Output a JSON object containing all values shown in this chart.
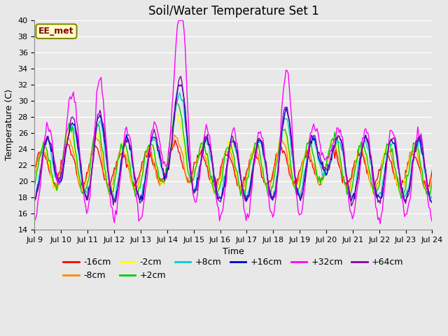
{
  "title": "Soil/Water Temperature Set 1",
  "xlabel": "Time",
  "ylabel": "Temperature (C)",
  "ylim": [
    14,
    40
  ],
  "yticks": [
    14,
    16,
    18,
    20,
    22,
    24,
    26,
    28,
    30,
    32,
    34,
    36,
    38,
    40
  ],
  "x_tick_labels": [
    "Jul 9",
    "Jul 10",
    "Jul 11",
    "Jul 12",
    "Jul 13",
    "Jul 14",
    "Jul 15",
    "Jul 16",
    "Jul 17",
    "Jul 18",
    "Jul 19",
    "Jul 20",
    "Jul 21",
    "Jul 22",
    "Jul 23",
    "Jul 24"
  ],
  "annotation_text": "EE_met",
  "annotation_bg": "#ffffcc",
  "annotation_border": "#888800",
  "annotation_text_color": "#880000",
  "series": [
    {
      "label": "-16cm",
      "color": "#ff0000"
    },
    {
      "label": "-8cm",
      "color": "#ff8800"
    },
    {
      "label": "-2cm",
      "color": "#ffff00"
    },
    {
      "label": "+2cm",
      "color": "#00cc00"
    },
    {
      "label": "+8cm",
      "color": "#00cccc"
    },
    {
      "label": "+16cm",
      "color": "#0000cc"
    },
    {
      "label": "+32cm",
      "color": "#ff00ff"
    },
    {
      "label": "+64cm",
      "color": "#8800aa"
    }
  ],
  "fig_bg_color": "#e8e8e8",
  "plot_bg_color": "#e8e8e8",
  "grid_color": "#ffffff",
  "title_fontsize": 12,
  "axis_fontsize": 9,
  "tick_fontsize": 8,
  "legend_fontsize": 9,
  "linewidth": 1.0
}
